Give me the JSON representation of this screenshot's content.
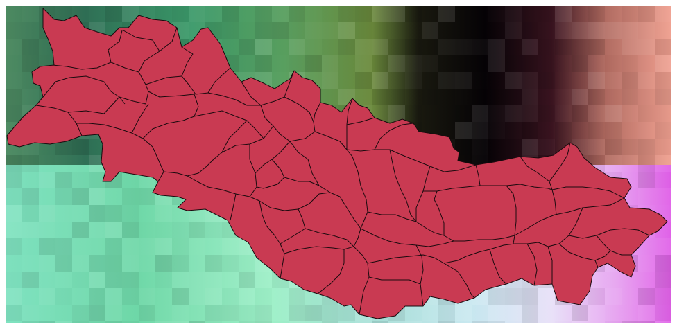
{
  "map": {
    "basemap": {
      "type": "false-color raster (pixelated)",
      "colors": {
        "teal_green": "#1f8a78",
        "olive": "#6f8a3a",
        "black": "#0a0508",
        "salmon": "#f0a39a",
        "mint": "#8ae8c0",
        "lavender": "#d8b0f0",
        "magenta": "#e060e8",
        "steel_blue": "#4f7fa0"
      }
    },
    "layers": [
      {
        "name": "sub-basins",
        "fill": "#c93a52",
        "stroke": "#1a0a0e",
        "polygon_count": 40
      }
    ]
  }
}
